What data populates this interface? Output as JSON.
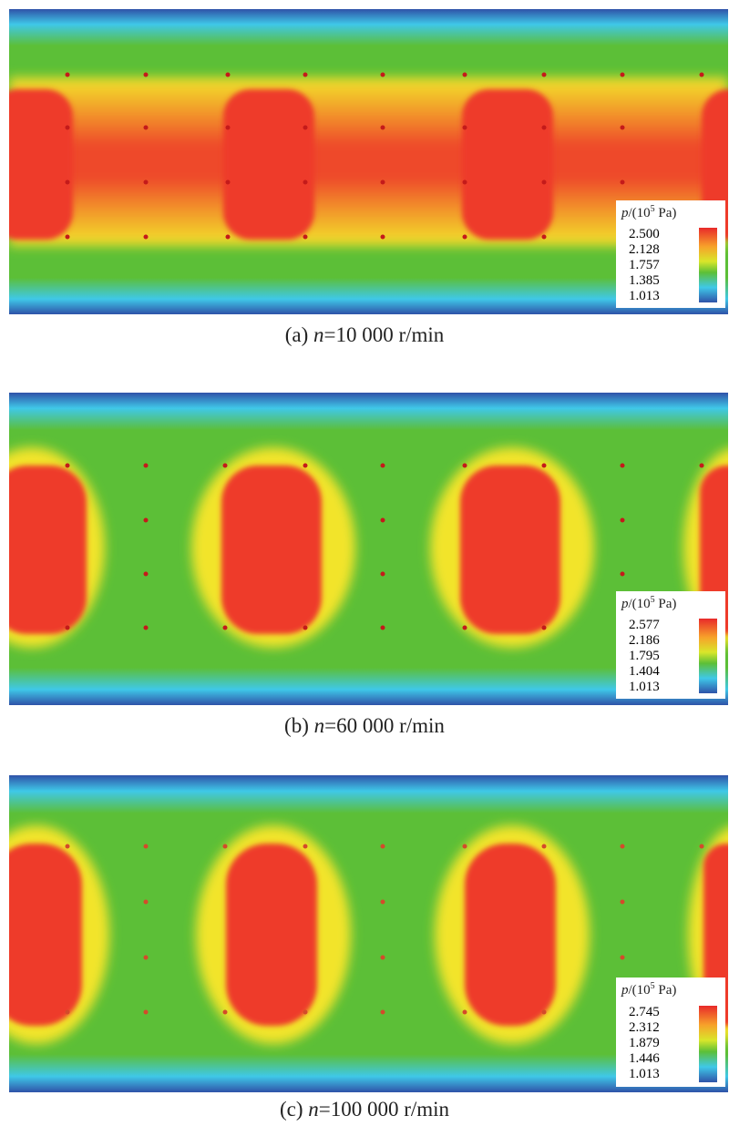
{
  "colors": {
    "max": "#e8292a",
    "mid_high": "#f7e62a",
    "mid": "#5cbf37",
    "mid_low": "#3fc8e8",
    "min": "#2f52a8"
  },
  "legend_title_var": "p",
  "legend_title_unit": "/(10",
  "legend_title_exp": "5",
  "legend_title_pa": " Pa)",
  "panels": [
    {
      "caption_prefix": "(a) ",
      "caption_var": "n",
      "caption_value": "=10 000 r/min",
      "legend_ticks": [
        "2.500",
        "2.128",
        "1.757",
        "1.385",
        "1.013"
      ],
      "field_level": 0.85
    },
    {
      "caption_prefix": "(b) ",
      "caption_var": "n",
      "caption_value": "=60 000 r/min",
      "legend_ticks": [
        "2.577",
        "2.186",
        "1.795",
        "1.404",
        "1.013"
      ],
      "field_level": 0.6
    },
    {
      "caption_prefix": "(c) ",
      "caption_var": "n",
      "caption_value": "=100 000 r/min",
      "legend_ticks": [
        "2.745",
        "2.312",
        "1.879",
        "1.446",
        "1.013"
      ],
      "field_level": 0.55
    }
  ]
}
